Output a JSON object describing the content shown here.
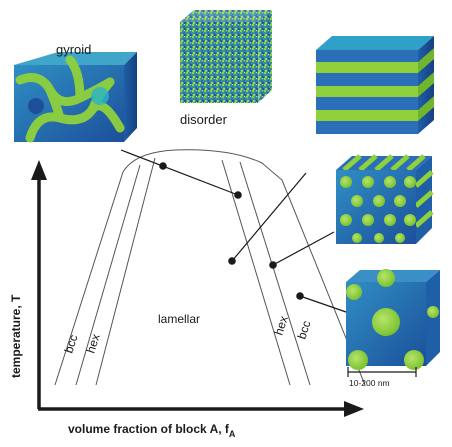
{
  "axes": {
    "y_label": "temperature, T",
    "x_label": "volume fraction of block A, f",
    "x_label_subscript": "A"
  },
  "phases": {
    "lamellar": "lamellar",
    "bcc_left": "bcc",
    "hex_left": "hex",
    "hex_right": "hex",
    "bcc_right": "bcc"
  },
  "morphologies": {
    "gyroid": "gyroid",
    "disorder": "disorder"
  },
  "scale_bar": {
    "label": "10-200 nm"
  },
  "colors": {
    "block_a": "#8fd13c",
    "block_b": "#2a6fb8",
    "block_b_light": "#3fa6c9",
    "line": "#1a1a1a"
  }
}
